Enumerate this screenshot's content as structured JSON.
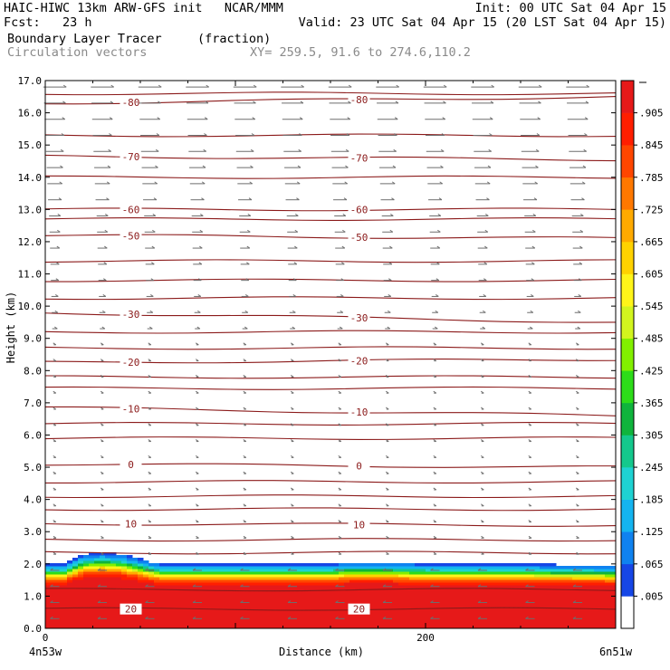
{
  "header": {
    "left_line1": "HAIC-HIWC 13km ARW-GFS init   NCAR/MMM",
    "left_line2": "Fcst:   23 h",
    "field_name": "Boundary Layer Tracer",
    "field_units": "(fraction)",
    "vector_label": "Circulation vectors",
    "xy_label": "XY= 259.5, 91.6 to 274.6,110.2",
    "init": "Init: 00 UTC Sat 04 Apr 15",
    "valid": "Valid: 23 UTC Sat 04 Apr 15 (20 LST Sat 04 Apr 15)"
  },
  "chart_data": {
    "type": "heatmap",
    "title": "Boundary Layer Tracer (fraction)",
    "xlabel": "Distance (km)",
    "ylabel": "Height (km)",
    "xlim": [
      0,
      300
    ],
    "ylim": [
      0,
      17
    ],
    "x_ticks": [
      {
        "value": 0,
        "label": "0"
      },
      {
        "value": 200,
        "label": "200"
      }
    ],
    "x_end_labels": {
      "left": "4n53w",
      "right": "6n51w"
    },
    "y_ticks": [
      "0.0",
      "1.0",
      "2.0",
      "3.0",
      "4.0",
      "5.0",
      "6.0",
      "7.0",
      "8.0",
      "9.0",
      "10.0",
      "11.0",
      "12.0",
      "13.0",
      "14.0",
      "15.0",
      "16.0",
      "17.0"
    ],
    "colorbar": {
      "labels": [
        ".005",
        ".065",
        ".125",
        ".185",
        ".245",
        ".305",
        ".365",
        ".425",
        ".485",
        ".545",
        ".605",
        ".665",
        ".725",
        ".785",
        ".845",
        ".905"
      ],
      "colors": [
        "#ffffff",
        "#1646e6",
        "#0f82f0",
        "#14b4f0",
        "#1ed2d2",
        "#14c88c",
        "#0fb43c",
        "#2ddc19",
        "#82f000",
        "#d2f51e",
        "#fff519",
        "#ffd200",
        "#ffaa00",
        "#ff7800",
        "#ff4600",
        "#ff1e00",
        "#e61919"
      ]
    },
    "tracer_layer": {
      "top_km": [
        [
          0,
          2.0
        ],
        [
          10,
          2.0
        ],
        [
          20,
          2.3
        ],
        [
          30,
          2.35
        ],
        [
          40,
          2.3
        ],
        [
          50,
          2.15
        ],
        [
          60,
          2.0
        ],
        [
          100,
          2.0
        ],
        [
          150,
          2.0
        ],
        [
          160,
          2.05
        ],
        [
          180,
          2.05
        ],
        [
          200,
          2.0
        ],
        [
          250,
          2.0
        ],
        [
          300,
          1.95
        ]
      ],
      "profile": [
        [
          0.0,
          0.99
        ],
        [
          1.1,
          0.99
        ],
        [
          1.35,
          0.92
        ],
        [
          1.5,
          0.8
        ],
        [
          1.62,
          0.6
        ],
        [
          1.75,
          0.35
        ],
        [
          1.85,
          0.18
        ],
        [
          1.95,
          0.08
        ],
        [
          2.0,
          0.03
        ]
      ]
    },
    "contours": [
      {
        "label": "-80",
        "y_left": 16.3,
        "y_right": 16.5
      },
      {
        "label": "-70",
        "y_left": 14.65,
        "y_right": 14.55
      },
      {
        "label": "-60",
        "y_left": 13.0,
        "y_right": 13.0
      },
      {
        "label": "-50",
        "y_left": 12.2,
        "y_right": 12.1
      },
      {
        "label": "-30",
        "y_left": 9.8,
        "y_right": 9.5
      },
      {
        "label": "-20",
        "y_left": 8.25,
        "y_right": 8.35
      },
      {
        "label": "-10",
        "y_left": 6.85,
        "y_right": 6.6
      },
      {
        "label": "0",
        "y_left": 5.1,
        "y_right": 5.0
      },
      {
        "label": "10",
        "y_left": 3.25,
        "y_right": 3.2
      },
      {
        "label": "20",
        "y_left": 0.6,
        "y_right": 0.6
      }
    ],
    "unlabeled_contour_levels_km": [
      16.6,
      15.3,
      14.0,
      12.7,
      11.4,
      10.8,
      10.25,
      9.2,
      8.7,
      7.8,
      7.45,
      6.35,
      5.9,
      4.55,
      4.1,
      3.7,
      2.75,
      2.35,
      1.2
    ],
    "contour_label_positions_km": [
      [
        45,
        "left"
      ],
      [
        165,
        "right"
      ]
    ]
  }
}
